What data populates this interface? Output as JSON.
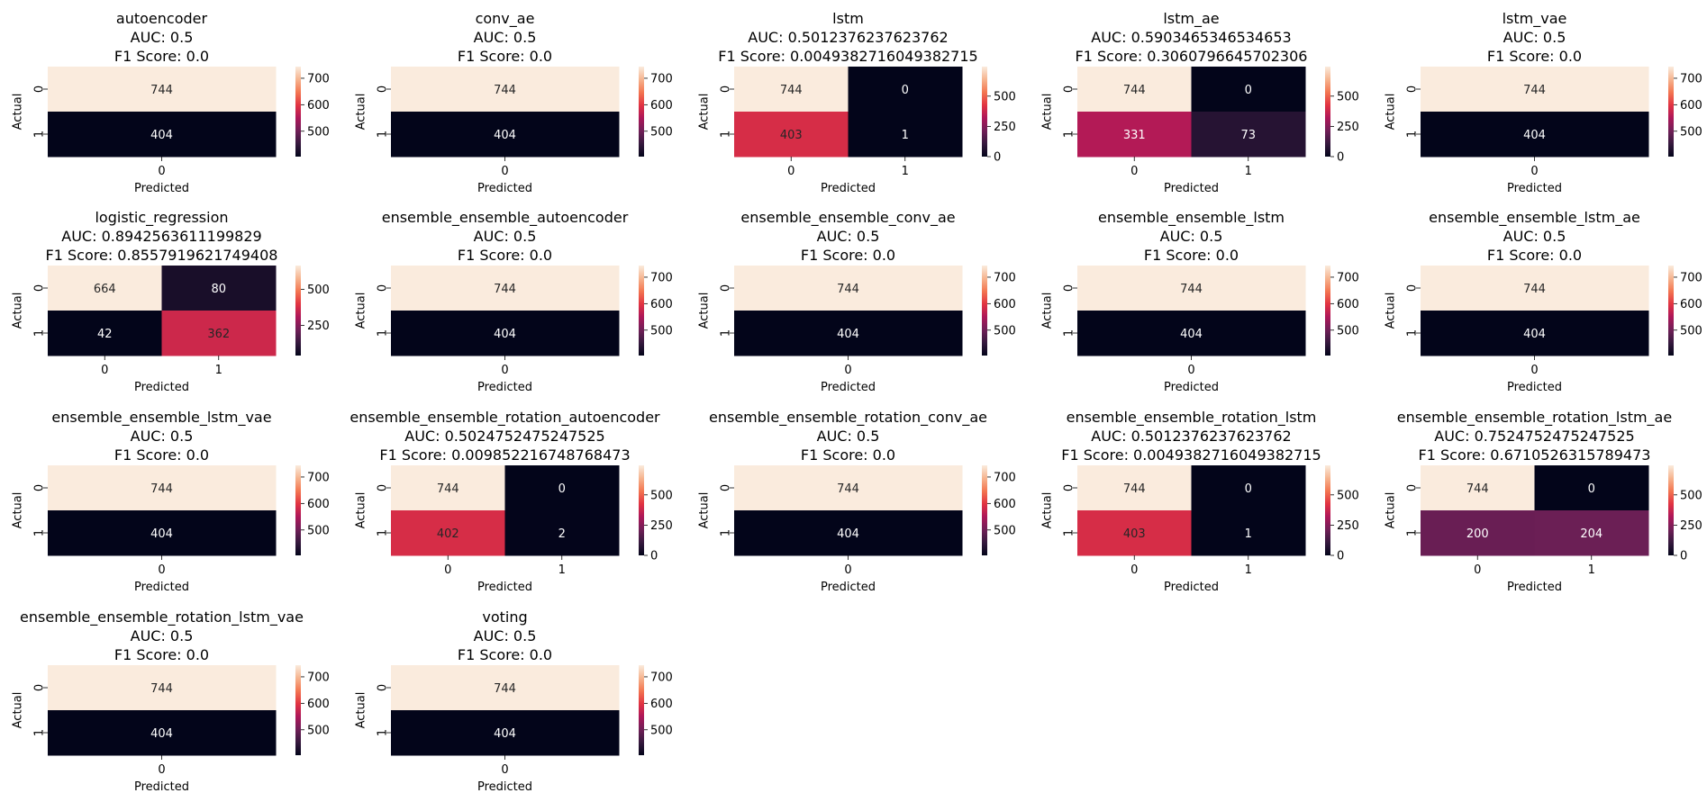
{
  "chart_data": [
    {
      "type": "heatmap",
      "title": "autoencoder",
      "auc_label": "AUC: 0.5",
      "f1_label": "F1 Score: 0.0",
      "xlabel": "Predicted",
      "ylabel": "Actual",
      "x_ticks": [
        "0"
      ],
      "y_ticks": [
        "0",
        "1"
      ],
      "values": [
        [
          744
        ],
        [
          404
        ]
      ],
      "colorbar_ticks": [
        500,
        600,
        700
      ]
    },
    {
      "type": "heatmap",
      "title": "conv_ae",
      "auc_label": "AUC: 0.5",
      "f1_label": "F1 Score: 0.0",
      "xlabel": "Predicted",
      "ylabel": "Actual",
      "x_ticks": [
        "0"
      ],
      "y_ticks": [
        "0",
        "1"
      ],
      "values": [
        [
          744
        ],
        [
          404
        ]
      ],
      "colorbar_ticks": [
        500,
        600,
        700
      ]
    },
    {
      "type": "heatmap",
      "title": "lstm",
      "auc_label": "AUC: 0.5012376237623762",
      "f1_label": "F1 Score: 0.0049382716049382715",
      "xlabel": "Predicted",
      "ylabel": "Actual",
      "x_ticks": [
        "0",
        "1"
      ],
      "y_ticks": [
        "0",
        "1"
      ],
      "values": [
        [
          744,
          0
        ],
        [
          403,
          1
        ]
      ],
      "colorbar_ticks": [
        0,
        250,
        500
      ]
    },
    {
      "type": "heatmap",
      "title": "lstm_ae",
      "auc_label": "AUC: 0.5903465346534653",
      "f1_label": "F1 Score: 0.3060796645702306",
      "xlabel": "Predicted",
      "ylabel": "Actual",
      "x_ticks": [
        "0",
        "1"
      ],
      "y_ticks": [
        "0",
        "1"
      ],
      "values": [
        [
          744,
          0
        ],
        [
          331,
          73
        ]
      ],
      "colorbar_ticks": [
        0,
        250,
        500
      ]
    },
    {
      "type": "heatmap",
      "title": "lstm_vae",
      "auc_label": "AUC: 0.5",
      "f1_label": "F1 Score: 0.0",
      "xlabel": "Predicted",
      "ylabel": "Actual",
      "x_ticks": [
        "0"
      ],
      "y_ticks": [
        "0",
        "1"
      ],
      "values": [
        [
          744
        ],
        [
          404
        ]
      ],
      "colorbar_ticks": [
        500,
        600,
        700
      ]
    },
    {
      "type": "heatmap",
      "title": "logistic_regression",
      "auc_label": "AUC: 0.8942563611199829",
      "f1_label": "F1 Score: 0.8557919621749408",
      "xlabel": "Predicted",
      "ylabel": "Actual",
      "x_ticks": [
        "0",
        "1"
      ],
      "y_ticks": [
        "0",
        "1"
      ],
      "values": [
        [
          664,
          80
        ],
        [
          42,
          362
        ]
      ],
      "colorbar_ticks": [
        250,
        500
      ]
    },
    {
      "type": "heatmap",
      "title": "ensemble_ensemble_autoencoder",
      "auc_label": "AUC: 0.5",
      "f1_label": "F1 Score: 0.0",
      "xlabel": "Predicted",
      "ylabel": "Actual",
      "x_ticks": [
        "0"
      ],
      "y_ticks": [
        "0",
        "1"
      ],
      "values": [
        [
          744
        ],
        [
          404
        ]
      ],
      "colorbar_ticks": [
        500,
        600,
        700
      ]
    },
    {
      "type": "heatmap",
      "title": "ensemble_ensemble_conv_ae",
      "auc_label": "AUC: 0.5",
      "f1_label": "F1 Score: 0.0",
      "xlabel": "Predicted",
      "ylabel": "Actual",
      "x_ticks": [
        "0"
      ],
      "y_ticks": [
        "0",
        "1"
      ],
      "values": [
        [
          744
        ],
        [
          404
        ]
      ],
      "colorbar_ticks": [
        500,
        600,
        700
      ]
    },
    {
      "type": "heatmap",
      "title": "ensemble_ensemble_lstm",
      "auc_label": "AUC: 0.5",
      "f1_label": "F1 Score: 0.0",
      "xlabel": "Predicted",
      "ylabel": "Actual",
      "x_ticks": [
        "0"
      ],
      "y_ticks": [
        "0",
        "1"
      ],
      "values": [
        [
          744
        ],
        [
          404
        ]
      ],
      "colorbar_ticks": [
        500,
        600,
        700
      ]
    },
    {
      "type": "heatmap",
      "title": "ensemble_ensemble_lstm_ae",
      "auc_label": "AUC: 0.5",
      "f1_label": "F1 Score: 0.0",
      "xlabel": "Predicted",
      "ylabel": "Actual",
      "x_ticks": [
        "0"
      ],
      "y_ticks": [
        "0",
        "1"
      ],
      "values": [
        [
          744
        ],
        [
          404
        ]
      ],
      "colorbar_ticks": [
        500,
        600,
        700
      ]
    },
    {
      "type": "heatmap",
      "title": "ensemble_ensemble_lstm_vae",
      "auc_label": "AUC: 0.5",
      "f1_label": "F1 Score: 0.0",
      "xlabel": "Predicted",
      "ylabel": "Actual",
      "x_ticks": [
        "0"
      ],
      "y_ticks": [
        "0",
        "1"
      ],
      "values": [
        [
          744
        ],
        [
          404
        ]
      ],
      "colorbar_ticks": [
        500,
        600,
        700
      ]
    },
    {
      "type": "heatmap",
      "title": "ensemble_ensemble_rotation_autoencoder",
      "auc_label": "AUC: 0.5024752475247525",
      "f1_label": "F1 Score: 0.009852216748768473",
      "xlabel": "Predicted",
      "ylabel": "Actual",
      "x_ticks": [
        "0",
        "1"
      ],
      "y_ticks": [
        "0",
        "1"
      ],
      "values": [
        [
          744,
          0
        ],
        [
          402,
          2
        ]
      ],
      "colorbar_ticks": [
        0,
        250,
        500
      ]
    },
    {
      "type": "heatmap",
      "title": "ensemble_ensemble_rotation_conv_ae",
      "auc_label": "AUC: 0.5",
      "f1_label": "F1 Score: 0.0",
      "xlabel": "Predicted",
      "ylabel": "Actual",
      "x_ticks": [
        "0"
      ],
      "y_ticks": [
        "0",
        "1"
      ],
      "values": [
        [
          744
        ],
        [
          404
        ]
      ],
      "colorbar_ticks": [
        500,
        600,
        700
      ]
    },
    {
      "type": "heatmap",
      "title": "ensemble_ensemble_rotation_lstm",
      "auc_label": "AUC: 0.5012376237623762",
      "f1_label": "F1 Score: 0.0049382716049382715",
      "xlabel": "Predicted",
      "ylabel": "Actual",
      "x_ticks": [
        "0",
        "1"
      ],
      "y_ticks": [
        "0",
        "1"
      ],
      "values": [
        [
          744,
          0
        ],
        [
          403,
          1
        ]
      ],
      "colorbar_ticks": [
        0,
        250,
        500
      ]
    },
    {
      "type": "heatmap",
      "title": "ensemble_ensemble_rotation_lstm_ae",
      "auc_label": "AUC: 0.7524752475247525",
      "f1_label": "F1 Score: 0.6710526315789473",
      "xlabel": "Predicted",
      "ylabel": "Actual",
      "x_ticks": [
        "0",
        "1"
      ],
      "y_ticks": [
        "0",
        "1"
      ],
      "values": [
        [
          744,
          0
        ],
        [
          200,
          204
        ]
      ],
      "colorbar_ticks": [
        0,
        250,
        500
      ]
    },
    {
      "type": "heatmap",
      "title": "ensemble_ensemble_rotation_lstm_vae",
      "auc_label": "AUC: 0.5",
      "f1_label": "F1 Score: 0.0",
      "xlabel": "Predicted",
      "ylabel": "Actual",
      "x_ticks": [
        "0"
      ],
      "y_ticks": [
        "0",
        "1"
      ],
      "values": [
        [
          744
        ],
        [
          404
        ]
      ],
      "colorbar_ticks": [
        500,
        600,
        700
      ]
    },
    {
      "type": "heatmap",
      "title": "voting",
      "auc_label": "AUC: 0.5",
      "f1_label": "F1 Score: 0.0",
      "xlabel": "Predicted",
      "ylabel": "Actual",
      "x_ticks": [
        "0"
      ],
      "y_ticks": [
        "0",
        "1"
      ],
      "values": [
        [
          744
        ],
        [
          404
        ]
      ],
      "colorbar_ticks": [
        500,
        600,
        700
      ]
    }
  ],
  "colormap": [
    "#03051a",
    "#36193e",
    "#701f57",
    "#ad1759",
    "#e13342",
    "#f37651",
    "#f6b48f",
    "#faebdd"
  ]
}
